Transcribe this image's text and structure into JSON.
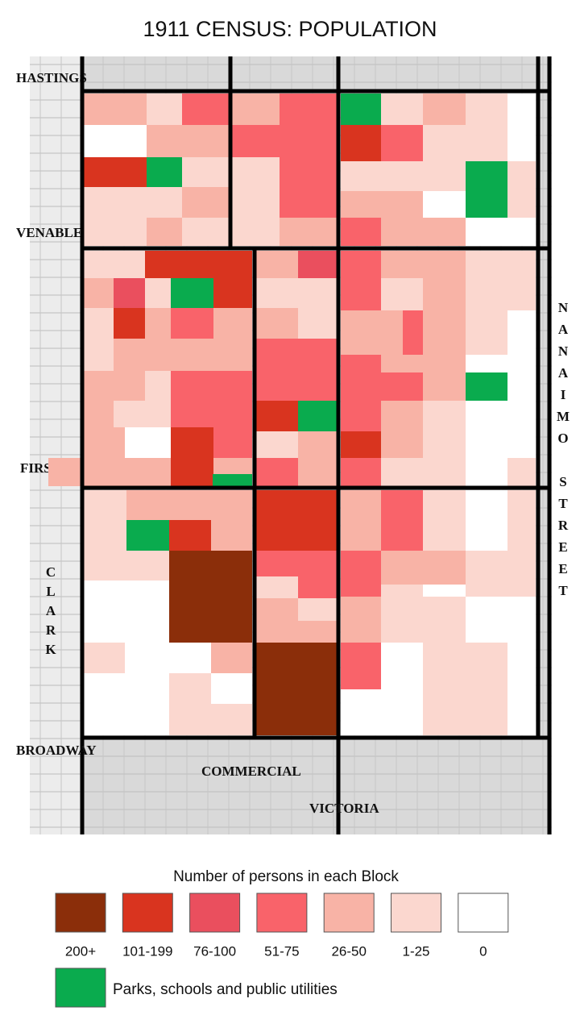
{
  "title": "1911 CENSUS:  POPULATION",
  "streets": {
    "hastings": "HASTINGS",
    "venables": "VENABLES",
    "first": "FIRST",
    "broadway": "BROADWAY",
    "commercial": "COMMERCIAL",
    "victoria": "VICTORIA",
    "clark": "CLARK",
    "nanaimo": "NANAIMO STREET"
  },
  "legend": {
    "title": "Number of persons in each Block",
    "items": [
      {
        "label": "200+",
        "color": "#8b2e0a"
      },
      {
        "label": "101-199",
        "color": "#d9341f"
      },
      {
        "label": "76-100",
        "color": "#ea4f5e"
      },
      {
        "label": "51-75",
        "color": "#f9636a"
      },
      {
        "label": "26-50",
        "color": "#f8b3a6"
      },
      {
        "label": "1-25",
        "color": "#fbd7cf"
      },
      {
        "label": "0",
        "color": "#ffffff"
      }
    ],
    "parks": {
      "label": "Parks, schools and public utilities",
      "color": "#0aab4e"
    }
  }
}
